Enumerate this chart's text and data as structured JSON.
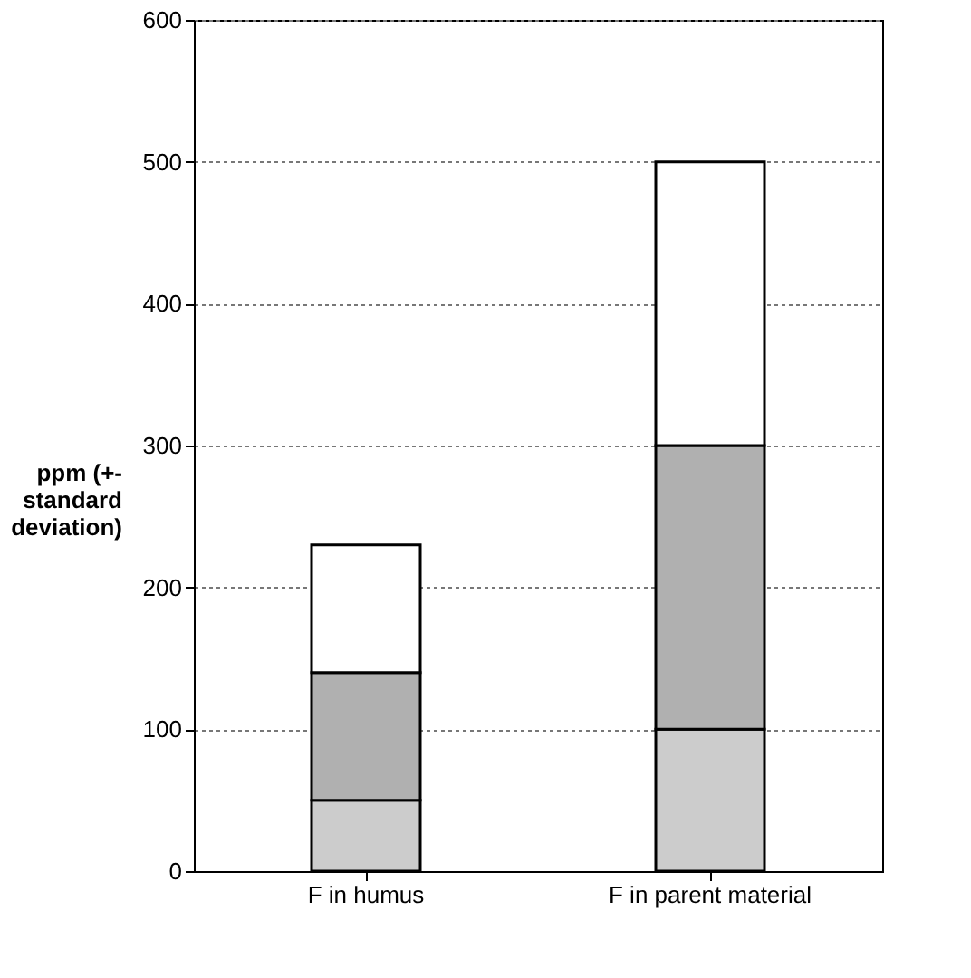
{
  "chart_data": {
    "type": "bar",
    "stacked": true,
    "ylabel": "ppm (+- standard deviation)",
    "categories": [
      "F in humus",
      "F in parent material"
    ],
    "series": [
      {
        "color": "#cccccc",
        "values": [
          50,
          100
        ]
      },
      {
        "color": "#b0b0b0",
        "values": [
          90,
          200
        ]
      },
      {
        "color": "#ffffff",
        "values": [
          90,
          200
        ]
      }
    ],
    "ylim": [
      0,
      600
    ],
    "yticks": [
      0,
      100,
      200,
      300,
      400,
      500,
      600
    ],
    "grid": "y"
  }
}
